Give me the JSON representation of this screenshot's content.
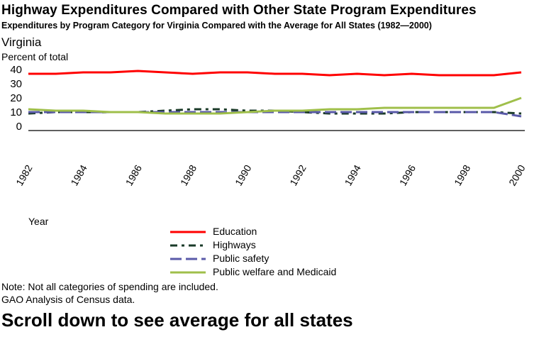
{
  "chart_data": {
    "type": "line",
    "title": "Highway Expenditures Compared with Other State Program Expenditures",
    "subtitle": "Expenditures by Program Category for Virginia Compared with the Average for All States (1982—2000)",
    "region": "Virginia",
    "ylabel": "Percent of total",
    "xlabel": "Year",
    "ylim": [
      0,
      40
    ],
    "yticks": [
      0,
      10,
      20,
      30,
      40
    ],
    "xticks": [
      "1982",
      "1984",
      "1986",
      "1988",
      "1990",
      "1992",
      "1994",
      "1996",
      "1998",
      "2000"
    ],
    "x": [
      1982,
      1983,
      1984,
      1985,
      1986,
      1987,
      1988,
      1989,
      1990,
      1991,
      1992,
      1993,
      1994,
      1995,
      1996,
      1997,
      1998,
      1999,
      2000
    ],
    "grid": false,
    "legend_position": "bottom-center",
    "series": [
      {
        "name": "Education",
        "color": "#ff0000",
        "dash": "solid",
        "values": [
          37,
          37,
          38,
          38,
          39,
          38,
          37,
          38,
          38,
          37,
          37,
          36,
          37,
          36,
          37,
          36,
          36,
          36,
          38
        ]
      },
      {
        "name": "Highways",
        "color": "#1a3a28",
        "dash": "dashdot",
        "values": [
          9,
          10,
          10,
          10,
          10,
          11,
          12,
          12,
          11,
          11,
          10,
          9,
          9,
          9,
          10,
          10,
          10,
          10,
          9
        ]
      },
      {
        "name": "Public safety",
        "color": "#5a5aa8",
        "dash": "longdash",
        "values": [
          10,
          10,
          10,
          10,
          10,
          10,
          10,
          10,
          10,
          10,
          10,
          10,
          10,
          10,
          10,
          10,
          10,
          10,
          7
        ]
      },
      {
        "name": "Public welfare and Medicaid",
        "color": "#9fbf4a",
        "dash": "solid",
        "values": [
          12,
          11,
          11,
          10,
          10,
          9,
          9,
          9,
          10,
          11,
          11,
          12,
          12,
          13,
          13,
          13,
          13,
          13,
          20
        ]
      }
    ]
  },
  "footer": {
    "note": "Note: Not all categories of spending are included.",
    "source": "GAO Analysis of Census data.",
    "scroll_hint": "Scroll down to see average for all states"
  }
}
